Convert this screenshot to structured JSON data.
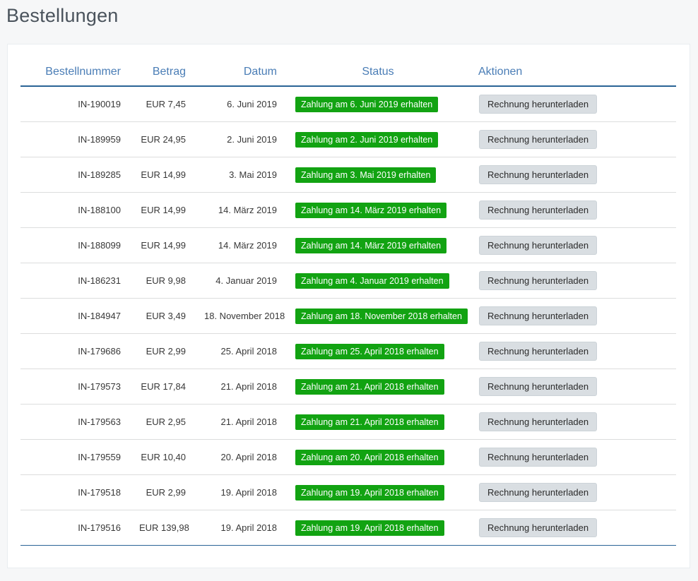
{
  "page": {
    "title": "Bestellungen"
  },
  "colors": {
    "page_bg": "#f6f7f8",
    "header_blue": "#4a7db6",
    "rule_blue": "#2a6496",
    "badge_green": "#12a312",
    "button_bg": "#d9dee2"
  },
  "table": {
    "headers": {
      "order_number": "Bestellnummer",
      "amount": "Betrag",
      "date": "Datum",
      "status": "Status",
      "actions": "Aktionen"
    },
    "action_label": "Rechnung herunterladen",
    "rows": [
      {
        "order": "IN-190019",
        "amount": "EUR 7,45",
        "date": "6. Juni 2019",
        "status": "Zahlung am 6. Juni 2019 erhalten"
      },
      {
        "order": "IN-189959",
        "amount": "EUR 24,95",
        "date": "2. Juni 2019",
        "status": "Zahlung am 2. Juni 2019 erhalten"
      },
      {
        "order": "IN-189285",
        "amount": "EUR 14,99",
        "date": "3. Mai 2019",
        "status": "Zahlung am 3. Mai 2019 erhalten"
      },
      {
        "order": "IN-188100",
        "amount": "EUR 14,99",
        "date": "14. März 2019",
        "status": "Zahlung am 14. März 2019 erhalten"
      },
      {
        "order": "IN-188099",
        "amount": "EUR 14,99",
        "date": "14. März 2019",
        "status": "Zahlung am 14. März 2019 erhalten"
      },
      {
        "order": "IN-186231",
        "amount": "EUR 9,98",
        "date": "4. Januar 2019",
        "status": "Zahlung am 4. Januar 2019 erhalten"
      },
      {
        "order": "IN-184947",
        "amount": "EUR 3,49",
        "date": "18. November 2018",
        "status": "Zahlung am 18. November 2018 erhalten"
      },
      {
        "order": "IN-179686",
        "amount": "EUR 2,99",
        "date": "25. April 2018",
        "status": "Zahlung am 25. April 2018 erhalten"
      },
      {
        "order": "IN-179573",
        "amount": "EUR 17,84",
        "date": "21. April 2018",
        "status": "Zahlung am 21. April 2018 erhalten"
      },
      {
        "order": "IN-179563",
        "amount": "EUR 2,95",
        "date": "21. April 2018",
        "status": "Zahlung am 21. April 2018 erhalten"
      },
      {
        "order": "IN-179559",
        "amount": "EUR 10,40",
        "date": "20. April 2018",
        "status": "Zahlung am 20. April 2018 erhalten"
      },
      {
        "order": "IN-179518",
        "amount": "EUR 2,99",
        "date": "19. April 2018",
        "status": "Zahlung am 19. April 2018 erhalten"
      },
      {
        "order": "IN-179516",
        "amount": "EUR 139,98",
        "date": "19. April 2018",
        "status": "Zahlung am 19. April 2018 erhalten"
      }
    ]
  }
}
